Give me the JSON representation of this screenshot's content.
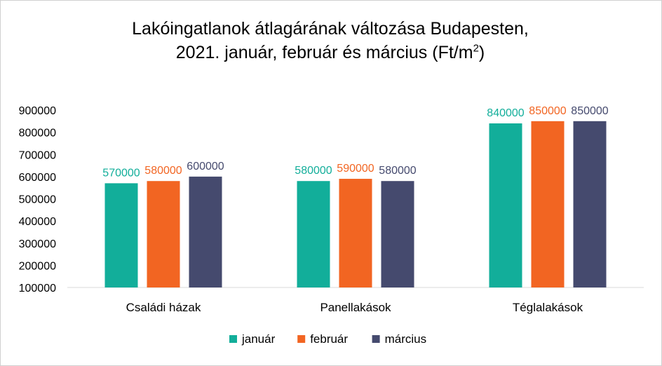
{
  "chart_data": {
    "type": "bar",
    "title_line1": "Lakóingatlanok átlagárának változása Budapesten,",
    "title_line2": "2021. január, február és március (Ft/m",
    "title_sup": "2",
    "title_end": ")",
    "categories": [
      "Családi házak",
      "Panellakások",
      "Téglalakások"
    ],
    "series": [
      {
        "name": "január",
        "color": "#12ae9a",
        "values": [
          570000,
          580000,
          840000
        ]
      },
      {
        "name": "február",
        "color": "#f26522",
        "values": [
          580000,
          590000,
          850000
        ]
      },
      {
        "name": "március",
        "color": "#454a6e",
        "values": [
          600000,
          580000,
          850000
        ]
      }
    ],
    "ylim": [
      100000,
      900000
    ],
    "yticks": [
      "100000",
      "200000",
      "300000",
      "400000",
      "500000",
      "600000",
      "700000",
      "800000",
      "900000"
    ],
    "grid": false,
    "legend_position": "bottom"
  }
}
